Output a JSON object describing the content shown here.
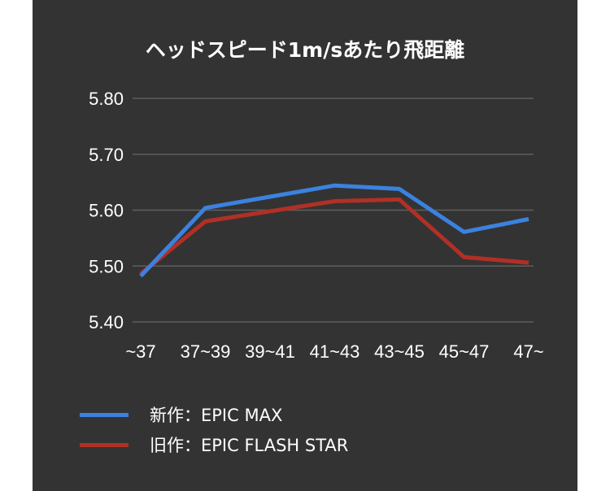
{
  "chart_data": {
    "type": "line",
    "title": "ヘッドスピード1m/sあたり飛距離",
    "categories": [
      "~37",
      "37~39",
      "39~41",
      "41~43",
      "43~45",
      "45~47",
      "47~"
    ],
    "ylim": [
      5.4,
      5.8
    ],
    "yticks": [
      "5.80",
      "5.70",
      "5.60",
      "5.50",
      "5.40"
    ],
    "grid": true,
    "legend_position": "bottom",
    "series": [
      {
        "name": "新作：EPIC MAX",
        "color": "#3b82e0",
        "values": [
          5.482,
          5.604,
          5.624,
          5.644,
          5.638,
          5.561,
          5.584
        ]
      },
      {
        "name": "旧作：EPIC FLASH STAR",
        "color": "#b03025",
        "values": [
          5.486,
          5.58,
          5.598,
          5.616,
          5.619,
          5.516,
          5.506
        ]
      }
    ]
  }
}
